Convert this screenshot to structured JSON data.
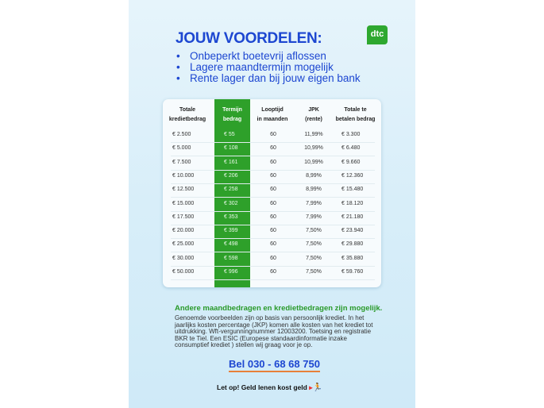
{
  "title": "JOUW VOORDELEN:",
  "logo": "dtc",
  "bullets": [
    "Onbeperkt boetevrij aflossen",
    "Lagere maandtermijn mogelijk",
    "Rente lager dan bij jouw eigen bank"
  ],
  "table": {
    "headers": [
      [
        "Totale",
        "kredietbedrag"
      ],
      [
        "Termijn",
        "bedrag"
      ],
      [
        "Looptijd",
        "in maanden"
      ],
      [
        "JPK",
        "(rente)"
      ],
      [
        "Totale te",
        "betalen bedrag"
      ]
    ],
    "rows": [
      [
        "€ 2.500",
        "€ 55",
        "60",
        "11,99%",
        "€ 3.300"
      ],
      [
        "€ 5.000",
        "€ 108",
        "60",
        "10,99%",
        "€ 6.480"
      ],
      [
        "€ 7.500",
        "€ 161",
        "60",
        "10,99%",
        "€ 9.660"
      ],
      [
        "€ 10.000",
        "€ 206",
        "60",
        "8,99%",
        "€ 12.360"
      ],
      [
        "€ 12.500",
        "€ 258",
        "60",
        "8,99%",
        "€ 15.480"
      ],
      [
        "€ 15.000",
        "€ 302",
        "60",
        "7,99%",
        "€ 18.120"
      ],
      [
        "€ 17.500",
        "€ 353",
        "60",
        "7,99%",
        "€ 21.180"
      ],
      [
        "€ 20.000",
        "€ 399",
        "60",
        "7,50%",
        "€ 23.940"
      ],
      [
        "€ 25.000",
        "€ 498",
        "60",
        "7,50%",
        "€ 29.880"
      ],
      [
        "€ 30.000",
        "€ 598",
        "60",
        "7,50%",
        "€ 35.880"
      ],
      [
        "€ 50.000",
        "€ 996",
        "60",
        "7,50%",
        "€ 59.760"
      ]
    ]
  },
  "note_heading": "Andere maandbedragen en kredietbedragen zijn mogelijk.",
  "note_text": "Genoemde voorbeelden zijn op basis van persoonlijk krediet. In het jaarlijks kosten percentage (JKP) komen alle kosten van het krediet tot uitdrukking. Wft-vergunningnummer 12003200. Toetsing en registratie BKR te Tiel. Een ESIC (Europese standaardinformatie inzake consumptief krediet ) stellen wij graag voor je op.",
  "phone": "Bel 030 - 68 68 750",
  "warning": "Let op! Geld lenen kost geld",
  "colors": {
    "blue": "#1d47d1",
    "green": "#2ea02a",
    "orange": "#e8803a"
  }
}
